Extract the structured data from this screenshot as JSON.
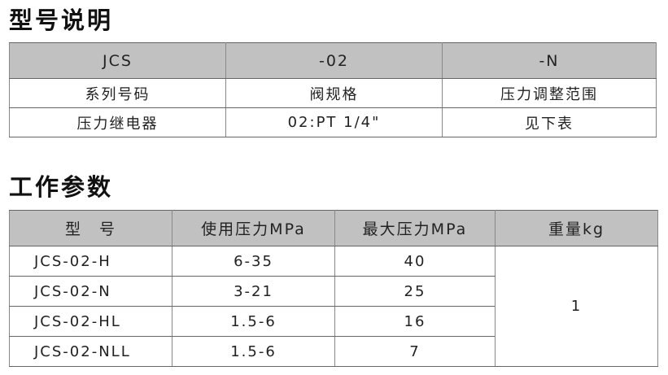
{
  "model_section": {
    "title": "型号说明",
    "header": [
      "JCS",
      "-02",
      "-N"
    ],
    "rows": [
      [
        "系列号码",
        "阀规格",
        "压力调整范围"
      ],
      [
        "压力继电器",
        "02:PT 1/4\"",
        "见下表"
      ]
    ]
  },
  "params_section": {
    "title": "工作参数",
    "header": [
      "型　号",
      "使用压力MPa",
      "最大压力MPa",
      "重量kg"
    ],
    "rows": [
      [
        "JCS-02-H",
        "6-35",
        "40"
      ],
      [
        "JCS-02-N",
        "3-21",
        "25"
      ],
      [
        "JCS-02-HL",
        "1.5-6",
        "16"
      ],
      [
        "JCS-02-NLL",
        "1.5-6",
        "7"
      ]
    ],
    "weight": "1"
  },
  "colors": {
    "header_bg": "#c1c1c1",
    "border": "#666666"
  }
}
